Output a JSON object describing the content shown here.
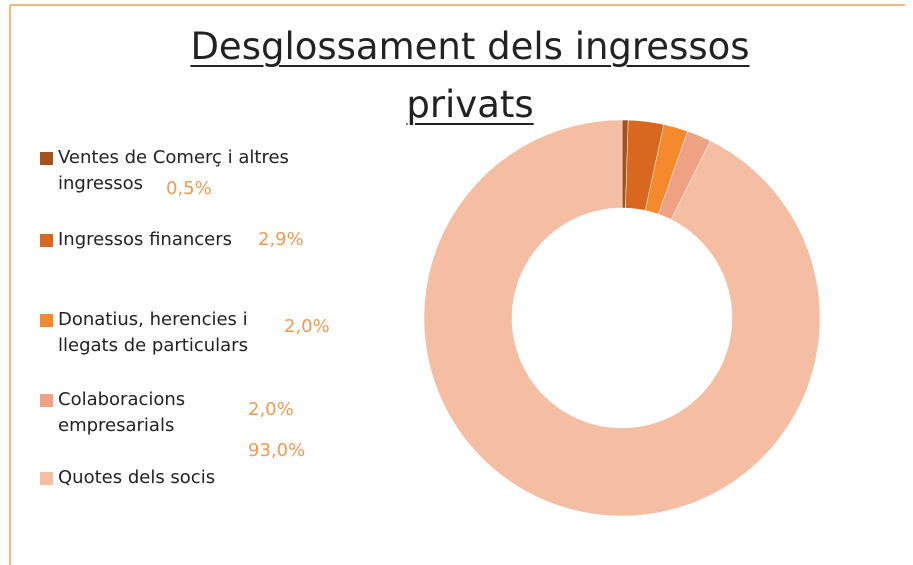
{
  "chart_data": {
    "type": "donut",
    "title": "Desglossament dels ingressos privats",
    "categories": [
      "Ventes de Comerç i altres ingressos",
      "Ingressos financers",
      "Donatius, herencies i llegats de particulars",
      "Colaboracions empresarials",
      "Quotes dels socis"
    ],
    "values": [
      0.5,
      2.9,
      2.0,
      2.0,
      93.0
    ],
    "value_labels": [
      "0,5%",
      "2,9%",
      "2,0%",
      "2,0%",
      "93,0%"
    ],
    "colors": [
      "#a5521c",
      "#d8681f",
      "#f48a2c",
      "#eea283",
      "#f5bea3"
    ]
  }
}
